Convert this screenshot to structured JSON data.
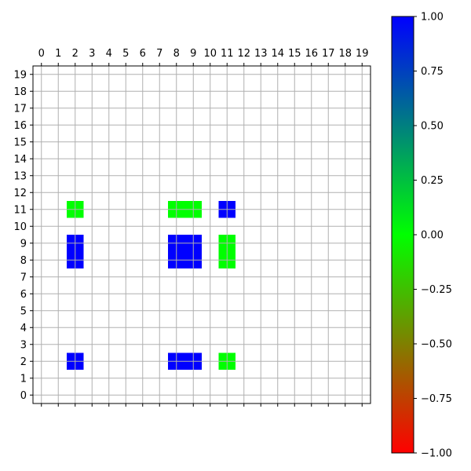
{
  "chart_data": {
    "type": "heatmap",
    "title": "",
    "xlabel": "",
    "ylabel": "",
    "grid": true,
    "x_ticks": [
      "0",
      "1",
      "2",
      "3",
      "4",
      "5",
      "6",
      "7",
      "8",
      "9",
      "10",
      "11",
      "12",
      "13",
      "14",
      "15",
      "16",
      "17",
      "18",
      "19"
    ],
    "y_ticks": [
      "0",
      "1",
      "2",
      "3",
      "4",
      "5",
      "6",
      "7",
      "8",
      "9",
      "10",
      "11",
      "12",
      "13",
      "14",
      "15",
      "16",
      "17",
      "18",
      "19"
    ],
    "xlim": [
      -0.5,
      19.5
    ],
    "ylim": [
      -0.5,
      19.5
    ],
    "x_tick_position": "top",
    "colormap": {
      "range": [
        -1.0,
        1.0
      ],
      "stops": [
        {
          "value": -1.0,
          "color": "#ff0000"
        },
        {
          "value": 0.0,
          "color": "#00ff00"
        },
        {
          "value": 1.0,
          "color": "#0000ff"
        }
      ],
      "colorbar_ticks": [
        "1.00",
        "0.75",
        "0.50",
        "0.25",
        "0.00",
        "−0.25",
        "−0.50",
        "−0.75",
        "−1.00"
      ],
      "colorbar_tick_values": [
        1.0,
        0.75,
        0.5,
        0.25,
        0.0,
        -0.25,
        -0.5,
        -0.75,
        -1.0
      ],
      "colorbar_position": "right"
    },
    "cells": [
      {
        "x": 2,
        "y": 11,
        "value": 0.0
      },
      {
        "x": 8,
        "y": 11,
        "value": 0.0
      },
      {
        "x": 9,
        "y": 11,
        "value": 0.0
      },
      {
        "x": 11,
        "y": 11,
        "value": 1.0
      },
      {
        "x": 2,
        "y": 9,
        "value": 1.0
      },
      {
        "x": 2,
        "y": 8,
        "value": 1.0
      },
      {
        "x": 8,
        "y": 9,
        "value": 1.0
      },
      {
        "x": 9,
        "y": 9,
        "value": 1.0
      },
      {
        "x": 8,
        "y": 8,
        "value": 1.0
      },
      {
        "x": 9,
        "y": 8,
        "value": 1.0
      },
      {
        "x": 11,
        "y": 9,
        "value": 0.0
      },
      {
        "x": 11,
        "y": 8,
        "value": 0.0
      },
      {
        "x": 2,
        "y": 2,
        "value": 1.0
      },
      {
        "x": 8,
        "y": 2,
        "value": 1.0
      },
      {
        "x": 9,
        "y": 2,
        "value": 1.0
      },
      {
        "x": 11,
        "y": 2,
        "value": 0.0
      }
    ]
  }
}
